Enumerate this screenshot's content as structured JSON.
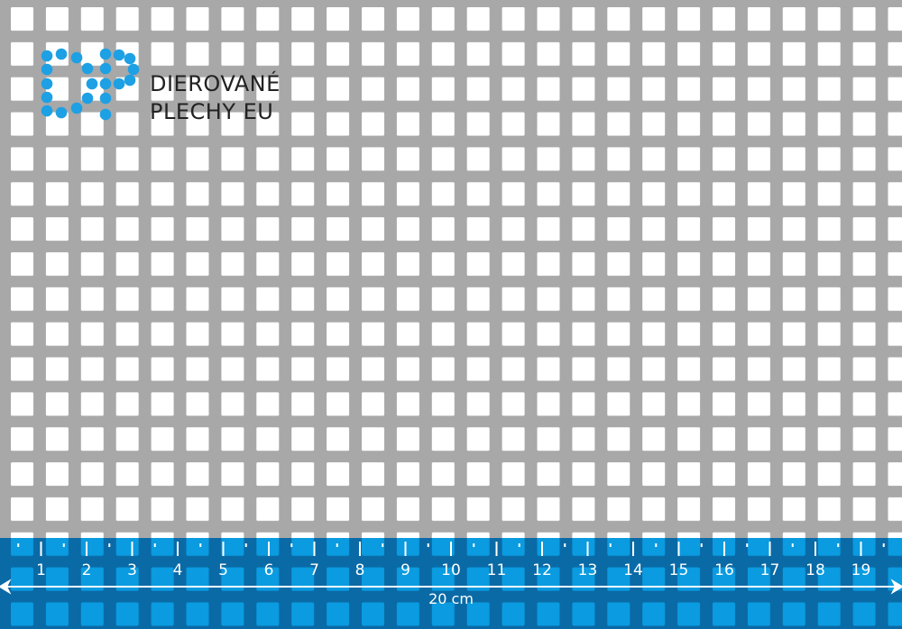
{
  "logo": {
    "mark": "DP",
    "line1": "DIEROVANÉ",
    "line2": "PLECHY EU",
    "color": "#1ea0e4"
  },
  "ruler": {
    "labels": [
      "1",
      "2",
      "3",
      "4",
      "5",
      "6",
      "7",
      "8",
      "9",
      "10",
      "11",
      "12",
      "13",
      "14",
      "15",
      "16",
      "17",
      "18",
      "19"
    ],
    "length_label": "20 cm",
    "band_color": "#0a98dc"
  },
  "colors": {
    "metal": "#a8a8a8",
    "hole": "#ffffff"
  }
}
